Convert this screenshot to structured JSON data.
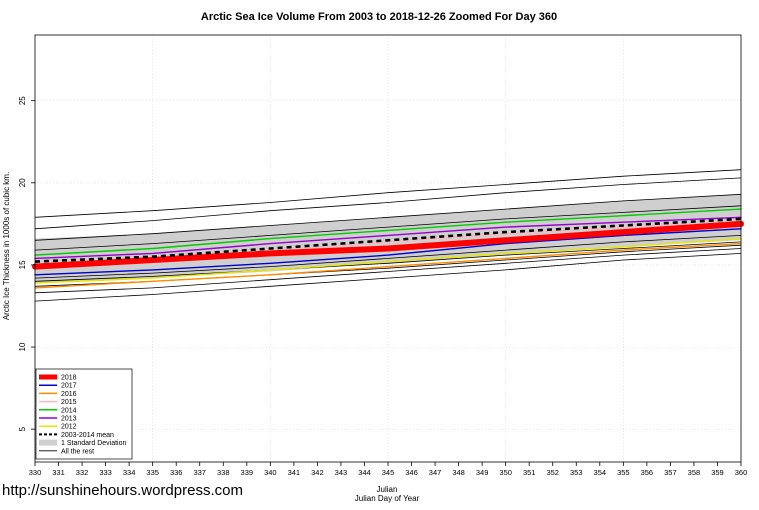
{
  "chart_data": {
    "type": "line",
    "title": "Arctic Sea Ice Volume From 2003 to 2018-12-26 Zoomed For Day 360",
    "xlabel": "Julian",
    "xlabel2": "Julian Day of Year",
    "ylabel": "Arctic Ice Thickness in 1000s of cubic km.",
    "xlim": [
      330,
      360
    ],
    "ylim": [
      3,
      29
    ],
    "x_ticks": [
      330,
      331,
      332,
      333,
      334,
      335,
      336,
      337,
      338,
      339,
      340,
      341,
      342,
      343,
      344,
      345,
      346,
      347,
      348,
      349,
      350,
      351,
      352,
      353,
      354,
      355,
      356,
      357,
      358,
      359,
      360
    ],
    "y_ticks": [
      5,
      10,
      15,
      20,
      25
    ],
    "grid": true,
    "legend_position": "bottom-left",
    "std_band": {
      "name": "1 Standard Deviation",
      "x": [
        330,
        335,
        340,
        345,
        350,
        355,
        360
      ],
      "upper": [
        16.6,
        16.9,
        17.4,
        17.9,
        18.4,
        18.9,
        19.3
      ],
      "lower": [
        13.9,
        14.2,
        14.6,
        15.1,
        15.6,
        16.1,
        16.5
      ]
    },
    "mean": {
      "name": "2003-2014 mean",
      "x": [
        330,
        335,
        340,
        345,
        350,
        355,
        360
      ],
      "values": [
        15.2,
        15.5,
        16.0,
        16.5,
        17.0,
        17.4,
        17.8
      ]
    },
    "series": [
      {
        "name": "2018",
        "color": "#ff0000",
        "x": [
          330,
          335,
          340,
          345,
          350,
          355,
          360
        ],
        "values": [
          14.9,
          15.3,
          15.7,
          16.0,
          16.5,
          17.0,
          17.5
        ]
      },
      {
        "name": "2017",
        "color": "#0000cc",
        "x": [
          330,
          335,
          340,
          345,
          350,
          355,
          360
        ],
        "values": [
          14.4,
          14.7,
          15.1,
          15.6,
          16.3,
          16.8,
          17.2
        ]
      },
      {
        "name": "2016",
        "color": "#ff8c00",
        "x": [
          330,
          335,
          340,
          345,
          350,
          355,
          360
        ],
        "values": [
          13.6,
          14.0,
          14.4,
          14.9,
          15.4,
          15.9,
          16.3
        ]
      },
      {
        "name": "2015",
        "color": "#ffb6c1",
        "x": [
          330,
          335,
          340,
          345,
          350,
          355,
          360
        ],
        "values": [
          15.0,
          15.3,
          15.8,
          16.4,
          16.9,
          17.3,
          17.6
        ]
      },
      {
        "name": "2014",
        "color": "#00cc00",
        "x": [
          330,
          335,
          340,
          345,
          350,
          355,
          360
        ],
        "values": [
          15.6,
          16.0,
          16.6,
          17.1,
          17.6,
          18.0,
          18.4
        ]
      },
      {
        "name": "2013",
        "color": "#9900cc",
        "x": [
          330,
          335,
          340,
          345,
          350,
          355,
          360
        ],
        "values": [
          15.4,
          15.7,
          16.3,
          16.8,
          17.3,
          17.6,
          17.9
        ]
      },
      {
        "name": "2012",
        "color": "#e6e600",
        "x": [
          330,
          335,
          340,
          345,
          350,
          355,
          360
        ],
        "values": [
          13.9,
          14.2,
          14.7,
          15.2,
          15.7,
          16.1,
          16.6
        ]
      }
    ],
    "rest": {
      "name": "All the rest",
      "x": [
        330,
        335,
        340,
        345,
        350,
        355,
        360
      ],
      "lines": [
        [
          17.9,
          18.3,
          18.8,
          19.4,
          19.9,
          20.4,
          20.8
        ],
        [
          17.2,
          17.7,
          18.3,
          18.8,
          19.4,
          19.9,
          20.3
        ],
        [
          16.5,
          16.9,
          17.4,
          17.9,
          18.4,
          18.9,
          19.3
        ],
        [
          15.9,
          16.3,
          16.8,
          17.3,
          17.8,
          18.2,
          18.6
        ],
        [
          14.2,
          14.5,
          14.9,
          15.4,
          15.9,
          16.4,
          16.8
        ],
        [
          14.0,
          14.3,
          14.7,
          15.1,
          15.6,
          16.0,
          16.4
        ],
        [
          13.7,
          14.0,
          14.4,
          14.8,
          15.3,
          15.8,
          16.2
        ],
        [
          13.3,
          13.6,
          14.1,
          14.6,
          15.1,
          15.6,
          16.0
        ],
        [
          12.8,
          13.2,
          13.7,
          14.2,
          14.7,
          15.3,
          15.7
        ]
      ]
    }
  },
  "watermark": "http://sunshinehours.wordpress.com"
}
